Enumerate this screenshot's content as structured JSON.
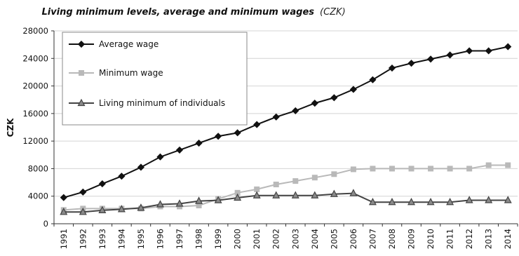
{
  "chart_data": {
    "type": "line",
    "title": "Living minimum levels, average and minimum wages",
    "subtitle": "(CZK)",
    "ylabel": "CZK",
    "ylim": [
      0,
      28000
    ],
    "yticks": [
      0,
      4000,
      8000,
      12000,
      16000,
      20000,
      24000,
      28000
    ],
    "ytick_labels": [
      "0",
      "4000",
      "8000",
      "12000",
      "16000",
      "20000",
      "24000",
      "28000"
    ],
    "grid": "horizontal",
    "legend_position": "top-left",
    "categories": [
      "1991",
      "1992",
      "1993",
      "1994",
      "1995",
      "1996",
      "1997",
      "1998",
      "1999",
      "2000",
      "2001",
      "2002",
      "2003",
      "2004",
      "2005",
      "2006",
      "2007",
      "2008",
      "2009",
      "2010",
      "2011",
      "2012",
      "2013",
      "2014"
    ],
    "series": [
      {
        "name": "Average wage",
        "color": "#111111",
        "marker": "diamond",
        "values": [
          3800,
          4600,
          5800,
          6900,
          8200,
          9700,
          10700,
          11700,
          12700,
          13200,
          14400,
          15500,
          16400,
          17500,
          18300,
          19500,
          20900,
          22600,
          23300,
          23900,
          24500,
          25100,
          25100,
          25700
        ]
      },
      {
        "name": "Minimum wage",
        "color": "#b9b9b9",
        "marker": "square",
        "values": [
          2000,
          2200,
          2200,
          2200,
          2200,
          2500,
          2500,
          2650,
          3600,
          4500,
          5000,
          5700,
          6200,
          6700,
          7200,
          7900,
          8000,
          8000,
          8000,
          8000,
          8000,
          8000,
          8500,
          8500
        ]
      },
      {
        "name": "Living minimum of individuals",
        "color": "#444444",
        "marker": "triangle",
        "values": [
          1700,
          1700,
          1950,
          2100,
          2300,
          2800,
          2900,
          3300,
          3400,
          3770,
          4100,
          4100,
          4100,
          4100,
          4300,
          4420,
          3130,
          3130,
          3130,
          3130,
          3130,
          3410,
          3410,
          3410
        ]
      }
    ]
  }
}
